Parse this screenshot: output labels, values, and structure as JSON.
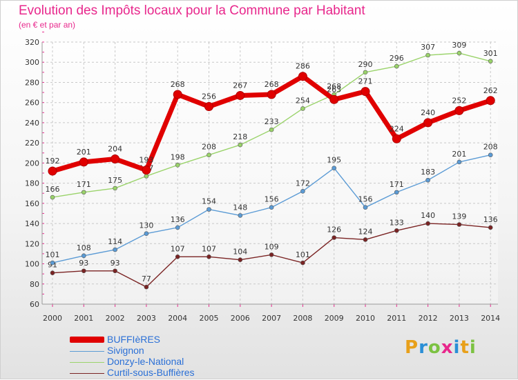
{
  "header": {
    "title": "Evolution des Impôts locaux pour la Commune par Habitant",
    "subtitle": "(en € et par an)"
  },
  "logo": {
    "text": "Proxiti",
    "colors": [
      "#e8a01a",
      "#2a8fd6",
      "#7cc242",
      "#e8278c",
      "#2a8fd6",
      "#e8a01a",
      "#7cc242"
    ]
  },
  "chart_data": {
    "type": "line",
    "title": "Evolution des Impôts locaux pour la Commune par Habitant",
    "subtitle": "(en € et par an)",
    "xlabel": "",
    "ylabel": "",
    "x": [
      "2000",
      "2001",
      "2002",
      "2003",
      "2004",
      "2005",
      "2006",
      "2007",
      "2008",
      "2009",
      "2010",
      "2011",
      "2012",
      "2013",
      "2014"
    ],
    "ylim": [
      60,
      320
    ],
    "yticks": [
      60,
      80,
      100,
      120,
      140,
      160,
      180,
      200,
      220,
      240,
      260,
      280,
      300,
      320
    ],
    "grid": true,
    "legend_position": "bottom-left",
    "series": [
      {
        "name": "BUFFIèRES",
        "color": "#e00000",
        "values": [
          192,
          201,
          204,
          193,
          268,
          256,
          267,
          268,
          286,
          263,
          271,
          224,
          240,
          252,
          262
        ]
      },
      {
        "name": "Sivignon",
        "color": "#5b9bd5",
        "values": [
          101,
          108,
          114,
          130,
          136,
          154,
          148,
          156,
          172,
          195,
          156,
          171,
          183,
          201,
          208
        ]
      },
      {
        "name": "Donzy-le-National",
        "color": "#9ad36a",
        "values": [
          166,
          171,
          175,
          187,
          198,
          208,
          218,
          233,
          254,
          268,
          290,
          296,
          307,
          309,
          301
        ]
      },
      {
        "name": "Curtil-sous-Buffières",
        "color": "#7a2323",
        "values": [
          91,
          93,
          93,
          77,
          107,
          107,
          104,
          109,
          101,
          126,
          124,
          133,
          140,
          139,
          136
        ]
      }
    ]
  }
}
